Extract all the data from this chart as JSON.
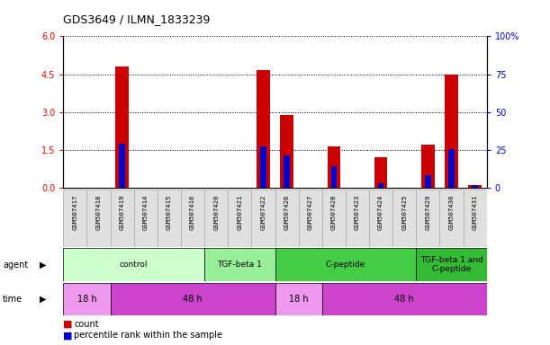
{
  "title": "GDS3649 / ILMN_1833239",
  "samples": [
    "GSM507417",
    "GSM507418",
    "GSM507419",
    "GSM507414",
    "GSM507415",
    "GSM507416",
    "GSM507420",
    "GSM507421",
    "GSM507422",
    "GSM507426",
    "GSM507427",
    "GSM507428",
    "GSM507423",
    "GSM507424",
    "GSM507425",
    "GSM507429",
    "GSM507430",
    "GSM507431"
  ],
  "count_values": [
    0.0,
    0.0,
    4.8,
    0.0,
    0.0,
    0.0,
    0.0,
    0.0,
    4.65,
    2.9,
    0.0,
    1.65,
    0.0,
    1.2,
    0.0,
    1.7,
    4.5,
    0.1
  ],
  "percentile_values": [
    0.0,
    0.0,
    1.75,
    0.0,
    0.0,
    0.0,
    0.0,
    0.0,
    1.65,
    1.3,
    0.0,
    0.85,
    0.0,
    0.2,
    0.0,
    0.5,
    1.55,
    0.1
  ],
  "ylim_left": [
    0,
    6
  ],
  "ylim_right": [
    0,
    100
  ],
  "yticks_left": [
    0,
    1.5,
    3,
    4.5,
    6
  ],
  "yticks_right": [
    0,
    25,
    50,
    75,
    100
  ],
  "bar_color": "#cc0000",
  "percentile_color": "#0000cc",
  "agent_groups": [
    {
      "label": "control",
      "start": 0,
      "end": 5,
      "color": "#ccffcc"
    },
    {
      "label": "TGF-beta 1",
      "start": 6,
      "end": 8,
      "color": "#99ee99"
    },
    {
      "label": "C-peptide",
      "start": 9,
      "end": 14,
      "color": "#44cc44"
    },
    {
      "label": "TGF-beta 1 and\nC-peptide",
      "start": 15,
      "end": 17,
      "color": "#33bb33"
    }
  ],
  "time_groups": [
    {
      "label": "18 h",
      "start": 0,
      "end": 1,
      "color": "#ee99ee"
    },
    {
      "label": "48 h",
      "start": 2,
      "end": 8,
      "color": "#cc44cc"
    },
    {
      "label": "18 h",
      "start": 9,
      "end": 10,
      "color": "#ee99ee"
    },
    {
      "label": "48 h",
      "start": 11,
      "end": 17,
      "color": "#cc44cc"
    }
  ],
  "bg_color": "#ffffff"
}
